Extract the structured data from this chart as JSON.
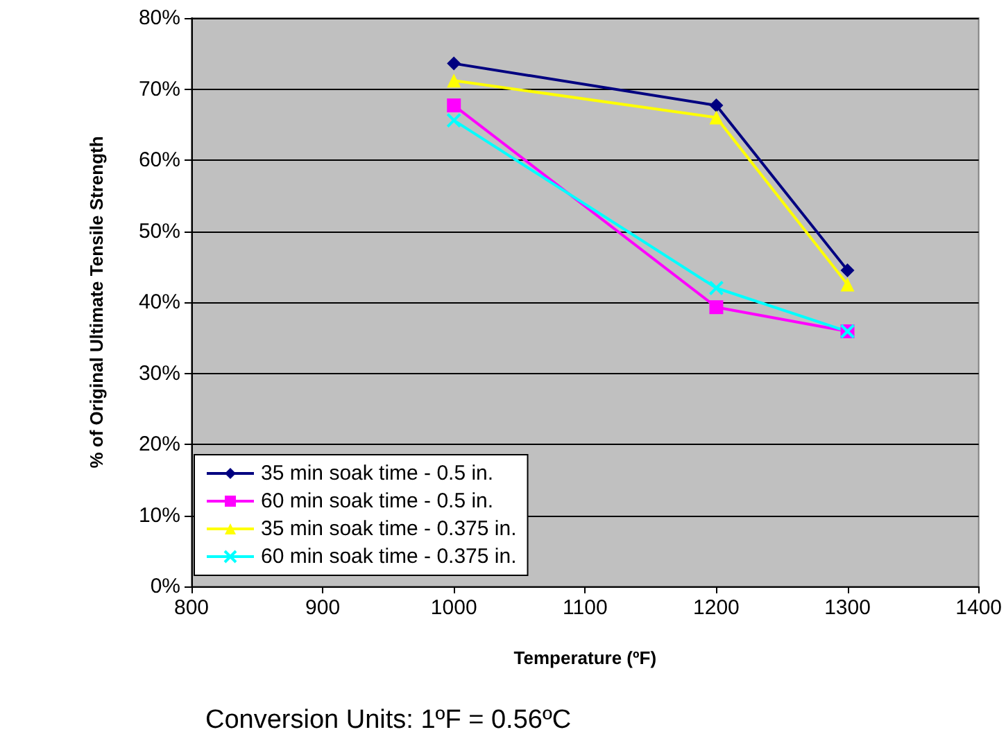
{
  "chart_data": {
    "type": "line",
    "xlabel": "Temperature (ºF)",
    "ylabel": "% of Original Ultimate Tensile Strength",
    "x": [
      1000,
      1200,
      1300
    ],
    "series": [
      {
        "name": "35 min soak time - 0.5 in.",
        "color": "#000080",
        "marker": "diamond",
        "values": [
          73.6,
          67.7,
          44.5
        ]
      },
      {
        "name": "60 min soak time - 0.5 in.",
        "color": "#ff00ff",
        "marker": "square",
        "values": [
          67.7,
          39.3,
          35.9
        ]
      },
      {
        "name": "35 min soak time - 0.375 in.",
        "color": "#ffff00",
        "marker": "triangle",
        "values": [
          71.2,
          66,
          42.5
        ]
      },
      {
        "name": "60 min soak time - 0.375 in.",
        "color": "#00ffff",
        "marker": "cross",
        "values": [
          65.6,
          42,
          35.9
        ]
      }
    ],
    "xlim": [
      800,
      1400
    ],
    "xticks": [
      800,
      900,
      1000,
      1100,
      1200,
      1300,
      1400
    ],
    "ylim": [
      0,
      80
    ],
    "yticks": [
      {
        "value": 0,
        "label": "0%"
      },
      {
        "value": 10,
        "label": "10%"
      },
      {
        "value": 20,
        "label": "20%"
      },
      {
        "value": 30,
        "label": "30%"
      },
      {
        "value": 40,
        "label": "40%"
      },
      {
        "value": 50,
        "label": "50%"
      },
      {
        "value": 60,
        "label": "60%"
      },
      {
        "value": 70,
        "label": "70%"
      },
      {
        "value": 80,
        "label": "80%"
      }
    ],
    "grid": "y",
    "legend": "bottom left",
    "annotations": [
      "Conversion Units: 1ºF = 0.56ºC"
    ]
  }
}
